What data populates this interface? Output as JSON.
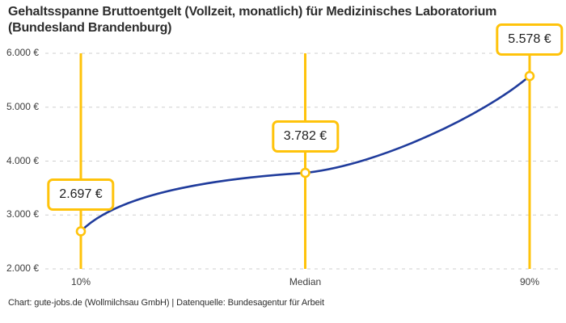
{
  "title": {
    "line1": "Gehaltsspanne Bruttoentgelt (Vollzeit, monatlich) für Medizinisches Laboratorium",
    "line2": "(Bundesland Brandenburg)"
  },
  "footer": "Chart: gute-jobs.de (Wollmilchsau GmbH) | Datenquelle: Bundesagentur für Arbeit",
  "colors": {
    "accent_yellow": "#ffc30b",
    "line_blue": "#203c9c",
    "grid": "#cfcfcf",
    "text_dark": "#2d2d2d"
  },
  "chart_data": {
    "type": "line",
    "title": "Gehaltsspanne Bruttoentgelt (Vollzeit, monatlich) für Medizinisches Laboratorium (Bundesland Brandenburg)",
    "categories": [
      "10%",
      "Median",
      "90%"
    ],
    "values": [
      2697,
      3782,
      5578
    ],
    "value_labels": [
      "2.697 €",
      "3.782 €",
      "5.578 €"
    ],
    "ylim": [
      2000,
      6000
    ],
    "yticks": [
      2000,
      3000,
      4000,
      5000,
      6000
    ],
    "ytick_labels": [
      "2.000 €",
      "3.000 €",
      "4.000 €",
      "5.000 €",
      "6.000 €"
    ],
    "xlabel": "",
    "ylabel": "",
    "grid": "horizontal-dashed",
    "legend": "none"
  }
}
